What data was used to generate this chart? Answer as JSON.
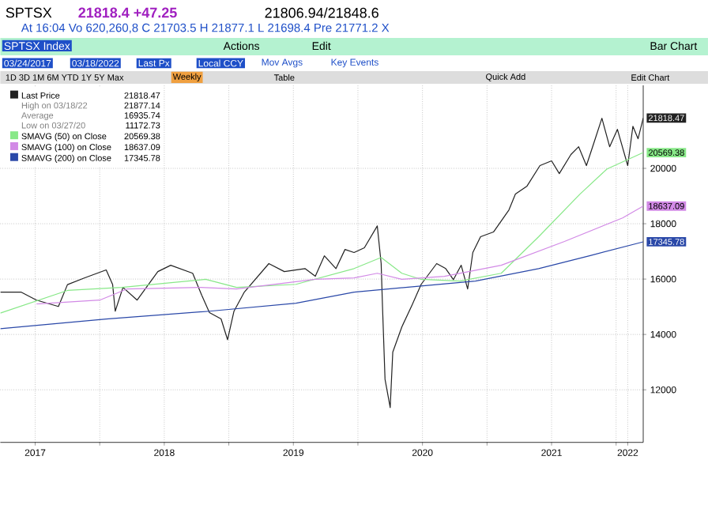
{
  "chart_data": {
    "type": "line",
    "title": "SPTSX Index",
    "xlim": [
      2017.23,
      2022.21
    ],
    "ylim": [
      10100,
      23000
    ],
    "xticks": [
      {
        "value": 2017.5,
        "label": "2017"
      },
      {
        "value": 2018,
        "label": null
      },
      {
        "value": 2018.5,
        "label": "2018"
      },
      {
        "value": 2019,
        "label": null
      },
      {
        "value": 2019.5,
        "label": "2019"
      },
      {
        "value": 2020,
        "label": null
      },
      {
        "value": 2020.5,
        "label": "2020"
      },
      {
        "value": 2021,
        "label": null
      },
      {
        "value": 2021.5,
        "label": "2021"
      },
      {
        "value": 2022,
        "label": null
      },
      {
        "value": 2022.09,
        "label": "2022"
      }
    ],
    "yticks": [
      12000,
      14000,
      16000,
      18000,
      20000
    ],
    "grid": true,
    "legend": "top left",
    "series": [
      {
        "name": "Last Price",
        "color": "#222222",
        "x": [
          2017.23,
          2017.39,
          2017.51,
          2017.68,
          2017.75,
          2017.88,
          2018.05,
          2018.1,
          2018.12,
          2018.18,
          2018.29,
          2018.45,
          2018.55,
          2018.72,
          2018.79,
          2018.85,
          2018.94,
          2018.99,
          2019.04,
          2019.12,
          2019.31,
          2019.43,
          2019.59,
          2019.67,
          2019.74,
          2019.83,
          2019.9,
          2019.97,
          2020.05,
          2020.15,
          2020.18,
          2020.19,
          2020.21,
          2020.25,
          2020.27,
          2020.34,
          2020.42,
          2020.49,
          2020.61,
          2020.68,
          2020.74,
          2020.8,
          2020.85,
          2020.89,
          2020.95,
          2021.05,
          2021.11,
          2021.17,
          2021.22,
          2021.31,
          2021.41,
          2021.5,
          2021.56,
          2021.65,
          2021.71,
          2021.77,
          2021.83,
          2021.89,
          2021.95,
          2022.01,
          2022.09,
          2022.13,
          2022.17,
          2022.21
        ],
        "values": [
          15530,
          15530,
          15240,
          15010,
          15800,
          16040,
          16330,
          15800,
          14840,
          15700,
          15240,
          16270,
          16500,
          16210,
          15420,
          14790,
          14560,
          13810,
          14840,
          15530,
          16560,
          16270,
          16380,
          16100,
          16840,
          16380,
          17070,
          16960,
          17130,
          17920,
          16560,
          15070,
          12380,
          11360,
          13360,
          14270,
          15070,
          15810,
          16560,
          16380,
          15980,
          16500,
          15640,
          16960,
          17530,
          17700,
          18100,
          18500,
          19070,
          19360,
          20100,
          20270,
          19810,
          20500,
          20780,
          20100,
          20950,
          21810,
          20780,
          21410,
          20100,
          21520,
          21070,
          21818.47
        ],
        "value_labels": [
          null,
          null,
          null,
          null,
          null,
          null,
          null,
          null,
          null,
          null,
          null,
          null,
          null,
          null,
          null,
          null,
          null,
          null,
          null,
          null,
          null,
          null,
          null,
          null,
          null,
          null,
          null,
          null,
          null,
          null,
          null,
          null,
          null,
          null,
          null,
          null,
          null,
          null,
          null,
          null,
          null,
          null,
          null,
          null,
          null,
          null,
          null,
          null,
          null,
          null,
          null,
          null,
          null,
          null,
          null,
          null,
          null,
          null,
          null,
          null,
          null,
          null,
          null,
          "21818.47"
        ]
      },
      {
        "name": "SMAVG (50)  on Close",
        "color": "#88e888",
        "x": [
          2017.23,
          2017.75,
          2018.17,
          2018.82,
          2019.06,
          2019.52,
          2019.97,
          2020.18,
          2020.34,
          2020.49,
          2020.79,
          2021.11,
          2021.4,
          2021.72,
          2021.93,
          2022.21
        ],
        "values": [
          14770,
          15590,
          15700,
          15990,
          15700,
          15810,
          16380,
          16780,
          16210,
          15990,
          15930,
          16210,
          17530,
          19070,
          19980,
          20569.38
        ],
        "value_labels": [
          null,
          null,
          null,
          null,
          null,
          null,
          null,
          null,
          null,
          null,
          null,
          null,
          null,
          null,
          null,
          "20569.38"
        ]
      },
      {
        "name": "SMAVG (100)  on Close",
        "color": "#d28ae6",
        "x": [
          2017.51,
          2018.0,
          2018.21,
          2018.78,
          2019.06,
          2019.67,
          2019.97,
          2020.15,
          2020.34,
          2020.67,
          2021.11,
          2021.6,
          2022.05,
          2022.21
        ],
        "values": [
          15100,
          15240,
          15640,
          15700,
          15640,
          15990,
          16040,
          16210,
          15990,
          16100,
          16500,
          17360,
          18210,
          18637.09
        ],
        "value_labels": [
          null,
          null,
          null,
          null,
          null,
          null,
          null,
          null,
          null,
          null,
          null,
          null,
          null,
          "18637.09"
        ]
      },
      {
        "name": "SMAVG (200)  on Close",
        "color": "#2a48a8",
        "x": [
          2017.23,
          2018.05,
          2018.85,
          2019.52,
          2019.97,
          2020.37,
          2020.91,
          2021.4,
          2021.8,
          2022.21
        ],
        "values": [
          14210,
          14560,
          14840,
          15130,
          15530,
          15700,
          15930,
          16380,
          16850,
          17345.78
        ],
        "value_labels": [
          null,
          null,
          null,
          null,
          null,
          null,
          null,
          null,
          null,
          "17345.78"
        ]
      }
    ],
    "annotations": [
      "High on 03/18/22",
      "21877.14",
      "Average",
      "16935.74",
      "Low on 03/27/20",
      "11172.73",
      "SPTSX",
      "21818.4 +47.25",
      "21806.94/21848.6",
      "At 16:04 Vo 620,260,8 C 21703.5 H 21877.1 L 21698.4 Pre 21771.2 X",
      "Actions",
      "Edit",
      "Bar Chart",
      "03/24/2017",
      "03/18/2022",
      "Last Px",
      "Local CCY",
      "Mov Avgs",
      "Key Events",
      "1D 3D 1M 6M YTD 1Y 5Y Max",
      "Weekly",
      "Table",
      "Quick Add",
      "Edit Chart"
    ]
  }
}
